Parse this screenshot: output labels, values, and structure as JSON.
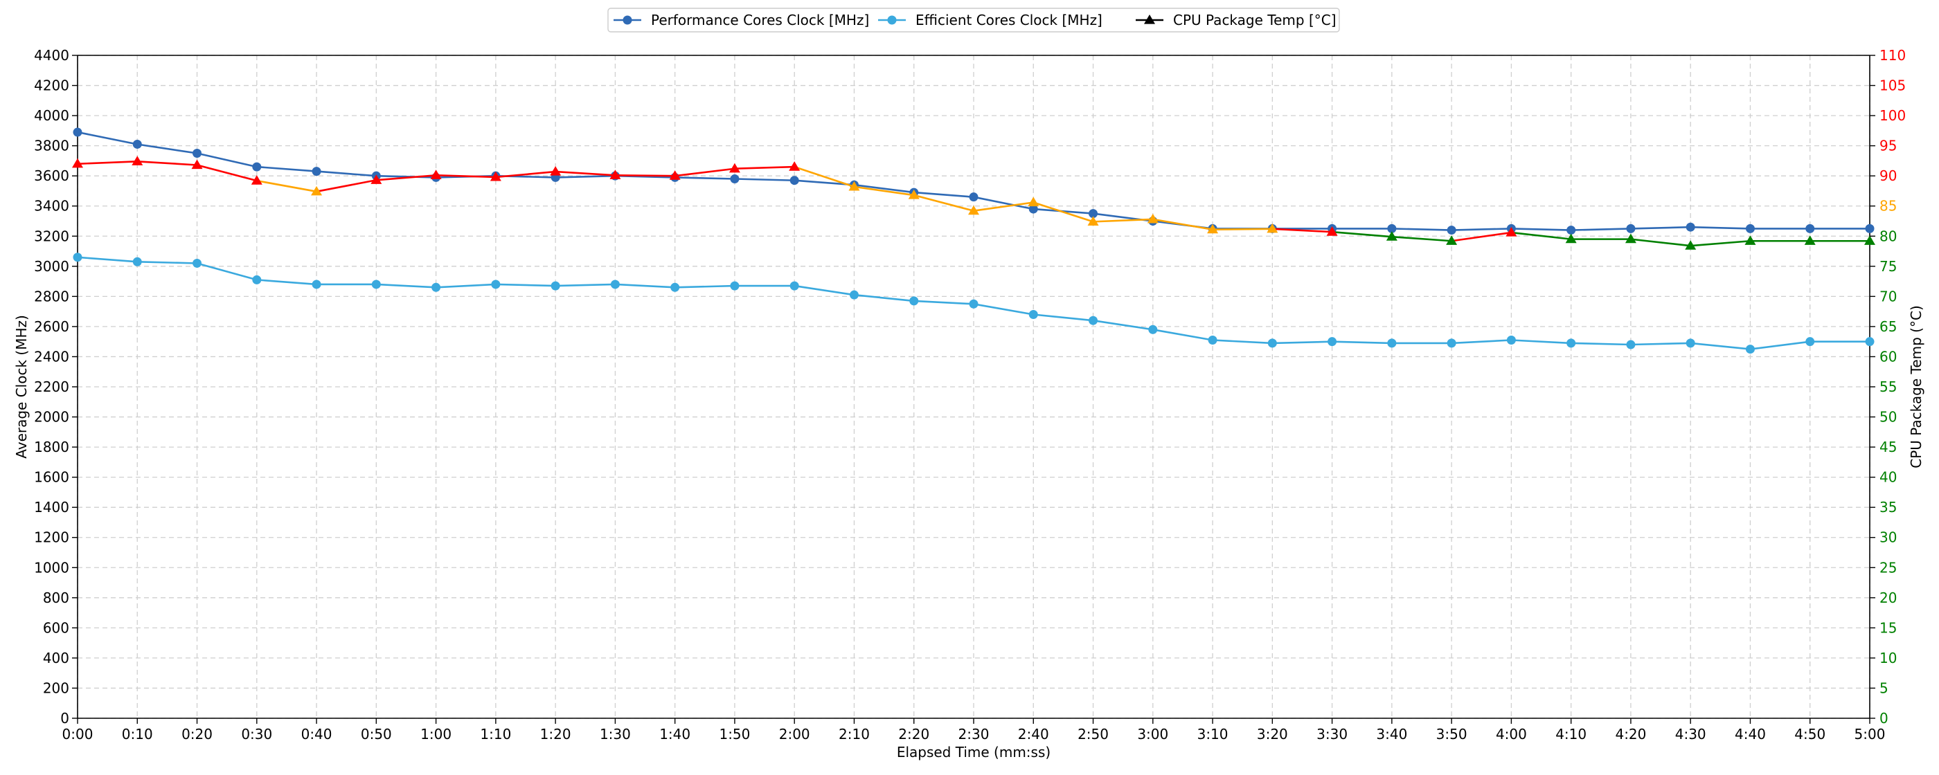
{
  "chart_data": {
    "type": "line",
    "xlabel": "Elapsed Time (mm:ss)",
    "ylabel": "Average Clock (MHz)",
    "y2label": "CPU Package Temp (°C)",
    "x": [
      "0:00",
      "0:10",
      "0:20",
      "0:30",
      "0:40",
      "0:50",
      "1:00",
      "1:10",
      "1:20",
      "1:30",
      "1:40",
      "1:50",
      "2:00",
      "2:10",
      "2:20",
      "2:30",
      "2:40",
      "2:50",
      "3:00",
      "3:10",
      "3:20",
      "3:30",
      "3:40",
      "3:50",
      "4:00",
      "4:10",
      "4:20",
      "4:30",
      "4:40",
      "4:50",
      "5:00"
    ],
    "ylim": [
      0,
      4400
    ],
    "y_ticks": [
      0,
      200,
      400,
      600,
      800,
      1000,
      1200,
      1400,
      1600,
      1800,
      2000,
      2200,
      2400,
      2600,
      2800,
      3000,
      3200,
      3400,
      3600,
      3800,
      4000,
      4200,
      4400
    ],
    "y2lim": [
      0,
      110
    ],
    "y2_ticks": [
      0,
      5,
      10,
      15,
      20,
      25,
      30,
      35,
      40,
      45,
      50,
      55,
      60,
      65,
      70,
      75,
      80,
      85,
      90,
      95,
      100,
      105,
      110
    ],
    "y2_tick_color_bands": [
      {
        "min": 0,
        "max": 80,
        "color": "#008000"
      },
      {
        "min": 81,
        "max": 89,
        "color": "#ffa500"
      },
      {
        "min": 90,
        "max": 110,
        "color": "#ff0000"
      }
    ],
    "grid": true,
    "legend_position": "top-center",
    "series": [
      {
        "name": "Performance Cores Clock [MHz]",
        "axis": "left",
        "color": "#2f6ab5",
        "marker": "circle",
        "values": [
          3890,
          3810,
          3750,
          3660,
          3630,
          3600,
          3590,
          3600,
          3590,
          3600,
          3590,
          3580,
          3570,
          3540,
          3490,
          3460,
          3380,
          3350,
          3300,
          3250,
          3250,
          3250,
          3250,
          3240,
          3250,
          3240,
          3250,
          3260,
          3250,
          3250,
          3250
        ]
      },
      {
        "name": "Efficient Cores Clock [MHz]",
        "axis": "left",
        "color": "#3aa9de",
        "marker": "circle",
        "values": [
          3060,
          3030,
          3020,
          2910,
          2880,
          2880,
          2860,
          2880,
          2870,
          2880,
          2860,
          2870,
          2870,
          2810,
          2770,
          2750,
          2680,
          2640,
          2580,
          2510,
          2490,
          2500,
          2490,
          2490,
          2510,
          2490,
          2480,
          2490,
          2450,
          2500,
          2500
        ]
      },
      {
        "name": "CPU Package Temp [°C]",
        "axis": "right",
        "color": "#000000",
        "marker": "triangle",
        "values": [
          92,
          92.4,
          91.8,
          89.2,
          87.4,
          89.3,
          90.1,
          89.8,
          90.7,
          90.1,
          90,
          91.2,
          91.5,
          88.2,
          86.8,
          84.2,
          85.6,
          82.4,
          82.8,
          81.1,
          81.2,
          80.7,
          79.9,
          79.2,
          80.6,
          79.5,
          79.5,
          78.4,
          79.2,
          79.2,
          79.2
        ]
      }
    ]
  }
}
